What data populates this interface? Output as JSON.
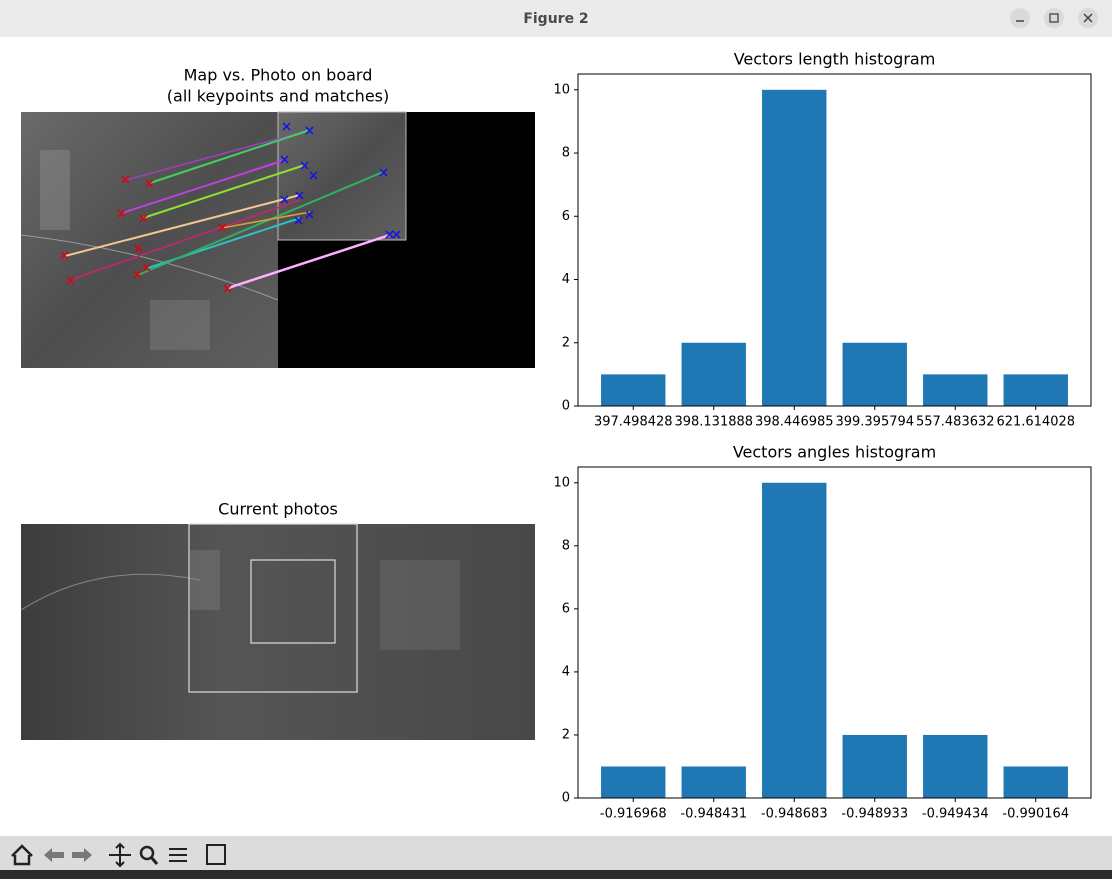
{
  "window": {
    "title": "Figure 2"
  },
  "panels": [
    {
      "title_lines": [
        "Map vs. Photo on board",
        "(all keypoints and matches)"
      ]
    },
    {
      "title_lines": [
        "Current photos"
      ]
    }
  ],
  "chart_data": [
    {
      "type": "bar",
      "title": "Vectors length histogram",
      "categories": [
        "397.498428",
        "398.131888",
        "398.446985",
        "399.395794",
        "557.483632",
        "621.614028"
      ],
      "values": [
        1,
        2,
        10,
        2,
        1,
        1
      ],
      "color": "#1f77b4",
      "ylim": [
        0,
        10.5
      ],
      "yticks": [
        0,
        2,
        4,
        6,
        8,
        10
      ],
      "grid": false
    },
    {
      "type": "bar",
      "title": "Vectors angles histogram",
      "categories": [
        "-0.916968",
        "-0.948431",
        "-0.948683",
        "-0.948933",
        "-0.949434",
        "-0.990164"
      ],
      "values": [
        1,
        1,
        10,
        2,
        2,
        1
      ],
      "color": "#1f77b4",
      "ylim": [
        0,
        10.5
      ],
      "yticks": [
        0,
        2,
        4,
        6,
        8,
        10
      ],
      "grid": false
    }
  ]
}
